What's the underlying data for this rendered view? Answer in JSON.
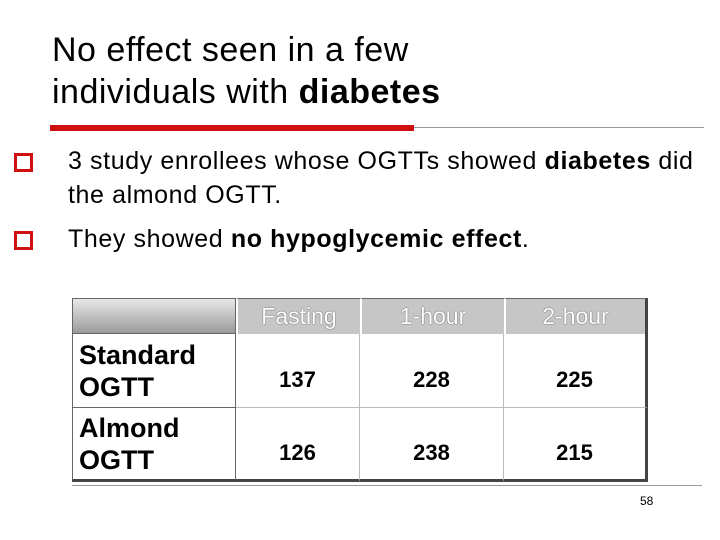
{
  "title": {
    "line1": "No effect seen in a few",
    "line2": "individuals with ",
    "line2_bold": "diabetes"
  },
  "bullets": [
    {
      "parts": [
        {
          "text": "3 study enrollees whose OGTTs showed ",
          "bold": false
        },
        {
          "text": "diabetes",
          "bold": true
        },
        {
          "text": " did the almond OGTT.",
          "bold": false
        }
      ]
    },
    {
      "parts": [
        {
          "text": "They showed ",
          "bold": false
        },
        {
          "text": "no hypoglycemic effect",
          "bold": true
        },
        {
          "text": ".",
          "bold": false
        }
      ]
    }
  ],
  "table": {
    "columns": [
      "Fasting",
      "1-hour",
      "2-hour"
    ],
    "rows": [
      {
        "label": "Standard OGTT",
        "values": [
          137,
          228,
          225
        ]
      },
      {
        "label": "Almond OGTT",
        "values": [
          126,
          238,
          215
        ]
      }
    ]
  },
  "page_number": "58"
}
